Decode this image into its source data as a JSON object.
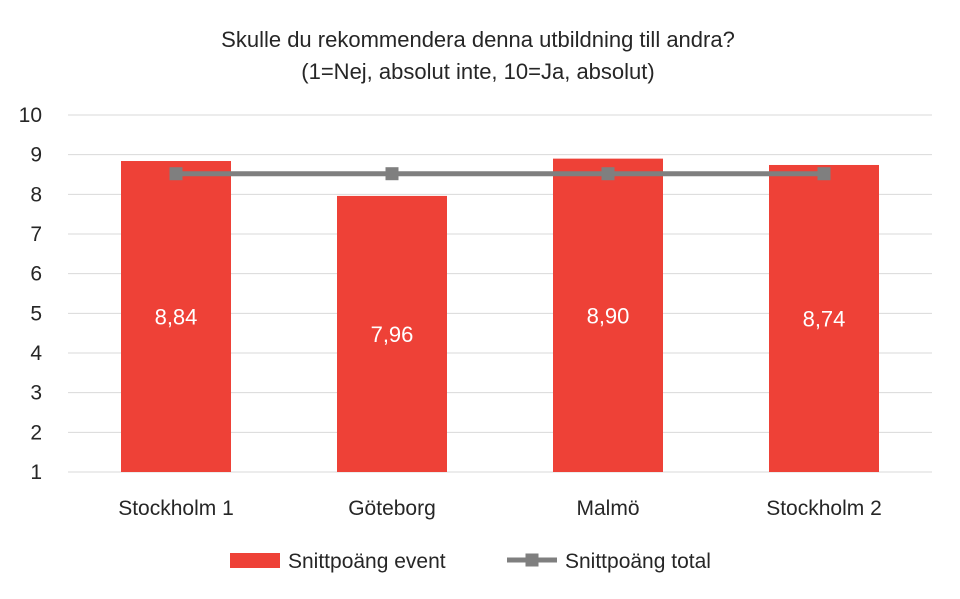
{
  "chart_data": {
    "type": "bar",
    "title": "Skulle du rekommendera denna utbildning till andra?",
    "subtitle": "(1=Nej, absolut inte, 10=Ja, absolut)",
    "categories": [
      "Stockholm 1",
      "Göteborg",
      "Malmö",
      "Stockholm 2"
    ],
    "series": [
      {
        "name": "Snittpoäng event",
        "type": "bar",
        "values": [
          8.84,
          7.96,
          8.9,
          8.74
        ],
        "data_labels": [
          "8,84",
          "7,96",
          "8,90",
          "8,74"
        ],
        "color": "#ee4137"
      },
      {
        "name": "Snittpoäng total",
        "type": "line",
        "values": [
          8.52,
          8.52,
          8.52,
          8.52
        ],
        "color": "#7f7f7f",
        "marker": "square"
      }
    ],
    "ylim": [
      1,
      10
    ],
    "yticks": [
      "1",
      "2",
      "3",
      "4",
      "5",
      "6",
      "7",
      "8",
      "9",
      "10"
    ],
    "grid": true,
    "legend_position": "bottom"
  }
}
